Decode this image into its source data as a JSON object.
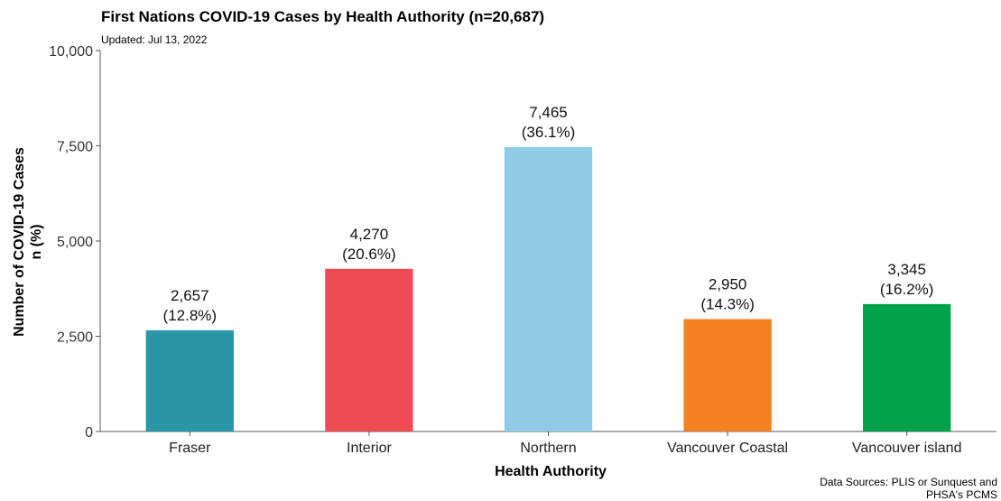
{
  "chart_data": {
    "type": "bar",
    "title": "First Nations COVID-19 Cases by Health Authority (n=20,687)",
    "subtitle": "Updated: Jul 13, 2022",
    "xlabel": "Health Authority",
    "ylabel_lines": [
      "Number of COVID-19 Cases",
      "n (%)"
    ],
    "categories": [
      "Fraser",
      "Interior",
      "Northern",
      "Vancouver Coastal",
      "Vancouver island"
    ],
    "values": [
      2657,
      4270,
      7465,
      2950,
      3345
    ],
    "value_labels": [
      "2,657",
      "4,270",
      "7,465",
      "2,950",
      "3,345"
    ],
    "percent_labels": [
      "(12.8%)",
      "(20.6%)",
      "(36.1%)",
      "(14.3%)",
      "(16.2%)"
    ],
    "colors": [
      "#2A96A8",
      "#EE4B55",
      "#8FCBE5",
      "#F58220",
      "#00A14B"
    ],
    "ylim": [
      0,
      10000
    ],
    "yticks": [
      0,
      2500,
      5000,
      7500,
      10000
    ],
    "ytick_labels": [
      "0",
      "2,500",
      "5,000",
      "7,500",
      "10,000"
    ],
    "grid": false,
    "source_lines": [
      "Data Sources: PLIS or Sunquest and",
      "PHSA's PCMS"
    ]
  }
}
